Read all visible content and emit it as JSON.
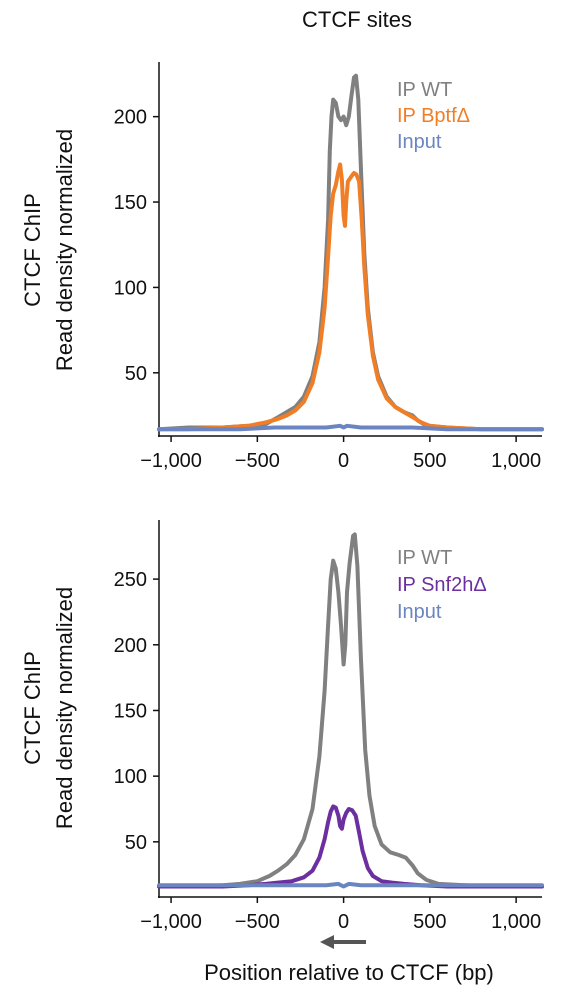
{
  "figure": {
    "title": "CTCF sites",
    "xlabel": "Position relative to CTCF (bp)",
    "arrow": "left-arrow"
  },
  "chart_data": [
    {
      "type": "line",
      "title": "CTCF sites",
      "ylabel_line1": "CTCF ChIP",
      "ylabel_line2": "Read density normalized",
      "xlabel": "",
      "xlim": [
        -1070,
        1150
      ],
      "ylim": [
        13,
        232
      ],
      "xticks": [
        -1000,
        -500,
        0,
        500,
        1000
      ],
      "xtick_labels": [
        "−1,000",
        "−500",
        "0",
        "500",
        "1,000"
      ],
      "yticks": [
        50,
        100,
        150,
        200
      ],
      "ytick_labels": [
        "50",
        "100",
        "150",
        "200"
      ],
      "legend": "top-right",
      "grid": false,
      "series": [
        {
          "name": "IP WT",
          "color": "#808080",
          "points": [
            [
              -1070,
              17
            ],
            [
              -900,
              18
            ],
            [
              -700,
              18
            ],
            [
              -550,
              19
            ],
            [
              -450,
              20
            ],
            [
              -380,
              24
            ],
            [
              -330,
              27
            ],
            [
              -280,
              30
            ],
            [
              -230,
              36
            ],
            [
              -180,
              48
            ],
            [
              -140,
              68
            ],
            [
              -110,
              100
            ],
            [
              -90,
              140
            ],
            [
              -80,
              180
            ],
            [
              -70,
              200
            ],
            [
              -60,
              210
            ],
            [
              -45,
              208
            ],
            [
              -30,
              200
            ],
            [
              -15,
              198
            ],
            [
              0,
              200
            ],
            [
              15,
              195
            ],
            [
              30,
              200
            ],
            [
              45,
              212
            ],
            [
              60,
              223
            ],
            [
              72,
              224
            ],
            [
              85,
              210
            ],
            [
              100,
              170
            ],
            [
              120,
              120
            ],
            [
              140,
              88
            ],
            [
              170,
              62
            ],
            [
              200,
              48
            ],
            [
              250,
              36
            ],
            [
              300,
              30
            ],
            [
              350,
              27
            ],
            [
              400,
              25
            ],
            [
              430,
              22
            ],
            [
              480,
              19
            ],
            [
              600,
              18
            ],
            [
              800,
              17
            ],
            [
              900,
              17
            ],
            [
              1000,
              17
            ],
            [
              1150,
              17
            ]
          ]
        },
        {
          "name": "IP BptfΔ",
          "color": "#f07e26",
          "points": [
            [
              -1070,
              17
            ],
            [
              -900,
              17
            ],
            [
              -700,
              18
            ],
            [
              -550,
              19
            ],
            [
              -450,
              21
            ],
            [
              -380,
              23
            ],
            [
              -330,
              25
            ],
            [
              -280,
              28
            ],
            [
              -230,
              33
            ],
            [
              -180,
              44
            ],
            [
              -140,
              62
            ],
            [
              -110,
              88
            ],
            [
              -90,
              118
            ],
            [
              -75,
              142
            ],
            [
              -60,
              155
            ],
            [
              -45,
              160
            ],
            [
              -30,
              168
            ],
            [
              -20,
              172
            ],
            [
              -10,
              163
            ],
            [
              0,
              142
            ],
            [
              8,
              136
            ],
            [
              15,
              150
            ],
            [
              25,
              162
            ],
            [
              45,
              165
            ],
            [
              60,
              167
            ],
            [
              75,
              166
            ],
            [
              90,
              162
            ],
            [
              105,
              140
            ],
            [
              120,
              112
            ],
            [
              140,
              84
            ],
            [
              170,
              60
            ],
            [
              200,
              46
            ],
            [
              250,
              35
            ],
            [
              300,
              30
            ],
            [
              350,
              27
            ],
            [
              400,
              24
            ],
            [
              450,
              21
            ],
            [
              500,
              19
            ],
            [
              600,
              18
            ],
            [
              800,
              17
            ],
            [
              900,
              17
            ],
            [
              1000,
              17
            ],
            [
              1150,
              17
            ]
          ]
        },
        {
          "name": "Input",
          "color": "#6a85c1",
          "points": [
            [
              -1070,
              17
            ],
            [
              -800,
              17
            ],
            [
              -600,
              17
            ],
            [
              -400,
              18
            ],
            [
              -200,
              18
            ],
            [
              -100,
              18
            ],
            [
              -20,
              19
            ],
            [
              0,
              18
            ],
            [
              20,
              19
            ],
            [
              100,
              18
            ],
            [
              200,
              18
            ],
            [
              400,
              18
            ],
            [
              600,
              17
            ],
            [
              800,
              17
            ],
            [
              1000,
              17
            ],
            [
              1150,
              17
            ]
          ]
        }
      ]
    },
    {
      "type": "line",
      "title": "",
      "ylabel_line1": "CTCF ChIP",
      "ylabel_line2": "Read density normalized",
      "xlabel": "Position relative to CTCF (bp)",
      "xlim": [
        -1070,
        1150
      ],
      "ylim": [
        8,
        295
      ],
      "xticks": [
        -1000,
        -500,
        0,
        500,
        1000
      ],
      "xtick_labels": [
        "−1,000",
        "−500",
        "0",
        "500",
        "1,000"
      ],
      "yticks": [
        50,
        100,
        150,
        200,
        250
      ],
      "ytick_labels": [
        "50",
        "100",
        "150",
        "200",
        "250"
      ],
      "legend": "top-right",
      "grid": false,
      "series": [
        {
          "name": "IP WT",
          "color": "#808080",
          "points": [
            [
              -1070,
              16
            ],
            [
              -900,
              16
            ],
            [
              -700,
              17
            ],
            [
              -600,
              18
            ],
            [
              -500,
              20
            ],
            [
              -430,
              24
            ],
            [
              -380,
              28
            ],
            [
              -330,
              33
            ],
            [
              -280,
              40
            ],
            [
              -230,
              52
            ],
            [
              -180,
              75
            ],
            [
              -140,
              115
            ],
            [
              -110,
              165
            ],
            [
              -90,
              215
            ],
            [
              -75,
              250
            ],
            [
              -60,
              264
            ],
            [
              -45,
              258
            ],
            [
              -30,
              240
            ],
            [
              -15,
              215
            ],
            [
              0,
              185
            ],
            [
              10,
              200
            ],
            [
              20,
              240
            ],
            [
              35,
              262
            ],
            [
              55,
              283
            ],
            [
              65,
              284
            ],
            [
              80,
              260
            ],
            [
              100,
              190
            ],
            [
              125,
              120
            ],
            [
              150,
              85
            ],
            [
              180,
              62
            ],
            [
              220,
              48
            ],
            [
              270,
              42
            ],
            [
              320,
              40
            ],
            [
              360,
              38
            ],
            [
              400,
              32
            ],
            [
              430,
              26
            ],
            [
              480,
              21
            ],
            [
              550,
              18
            ],
            [
              700,
              17
            ],
            [
              900,
              16
            ],
            [
              1000,
              16
            ],
            [
              1150,
              16
            ]
          ]
        },
        {
          "name": "IP Snf2hΔ",
          "color": "#6b2fa0",
          "points": [
            [
              -1070,
              16
            ],
            [
              -900,
              16
            ],
            [
              -700,
              16
            ],
            [
              -550,
              17
            ],
            [
              -450,
              18
            ],
            [
              -380,
              19
            ],
            [
              -300,
              20
            ],
            [
              -230,
              23
            ],
            [
              -180,
              28
            ],
            [
              -140,
              38
            ],
            [
              -110,
              52
            ],
            [
              -90,
              65
            ],
            [
              -75,
              73
            ],
            [
              -60,
              77
            ],
            [
              -45,
              76
            ],
            [
              -30,
              70
            ],
            [
              -20,
              62
            ],
            [
              -10,
              60
            ],
            [
              0,
              67
            ],
            [
              15,
              72
            ],
            [
              30,
              75
            ],
            [
              50,
              74
            ],
            [
              70,
              70
            ],
            [
              90,
              57
            ],
            [
              110,
              43
            ],
            [
              140,
              30
            ],
            [
              170,
              24
            ],
            [
              220,
              20
            ],
            [
              280,
              19
            ],
            [
              350,
              18
            ],
            [
              450,
              17
            ],
            [
              600,
              16
            ],
            [
              800,
              16
            ],
            [
              1000,
              16
            ],
            [
              1150,
              16
            ]
          ]
        },
        {
          "name": "Input",
          "color": "#6a85c1",
          "points": [
            [
              -1070,
              17
            ],
            [
              -800,
              17
            ],
            [
              -600,
              17
            ],
            [
              -400,
              17
            ],
            [
              -200,
              17
            ],
            [
              -100,
              17
            ],
            [
              -30,
              18
            ],
            [
              0,
              16
            ],
            [
              30,
              18
            ],
            [
              100,
              17
            ],
            [
              200,
              17
            ],
            [
              400,
              17
            ],
            [
              600,
              17
            ],
            [
              800,
              17
            ],
            [
              1000,
              17
            ],
            [
              1150,
              17
            ]
          ]
        }
      ]
    }
  ]
}
